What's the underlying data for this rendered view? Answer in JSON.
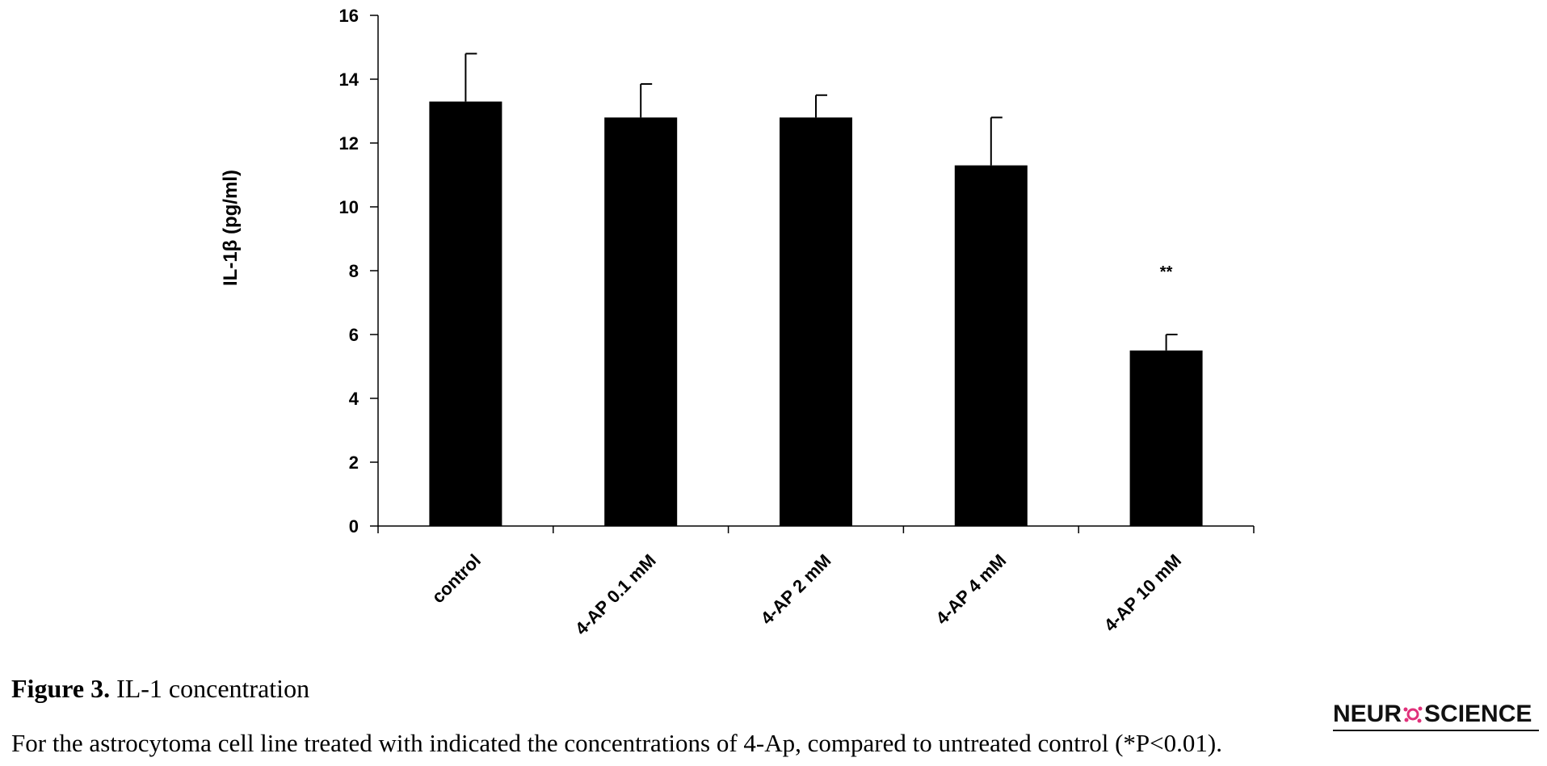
{
  "chart_data": {
    "type": "bar",
    "categories": [
      "control",
      "4-AP 0.1 mM",
      "4-AP 2 mM",
      "4-AP 4 mM",
      "4-AP 10 mM"
    ],
    "values": [
      13.3,
      12.8,
      12.8,
      11.3,
      5.5
    ],
    "errors": [
      1.5,
      1.05,
      0.7,
      1.5,
      0.5
    ],
    "significance": [
      "",
      "",
      "",
      "",
      "**"
    ],
    "ylabel": "IL-1β (pg/ml)",
    "xlabel": "",
    "ylim": [
      0,
      16
    ],
    "yticks": [
      0,
      2,
      4,
      6,
      8,
      10,
      12,
      14,
      16
    ],
    "grid": false,
    "bar_color": "#000000"
  },
  "caption": {
    "figure_label": "Figure 3.",
    "title": "IL-1 concentration",
    "text": "For the astrocytoma cell line treated with indicated the concentrations of 4-Ap, compared to untreated control (*P<0.01)."
  },
  "brand": {
    "text_left": "NEUR",
    "text_right": "SCIENCE",
    "accent": "#e0307a"
  }
}
